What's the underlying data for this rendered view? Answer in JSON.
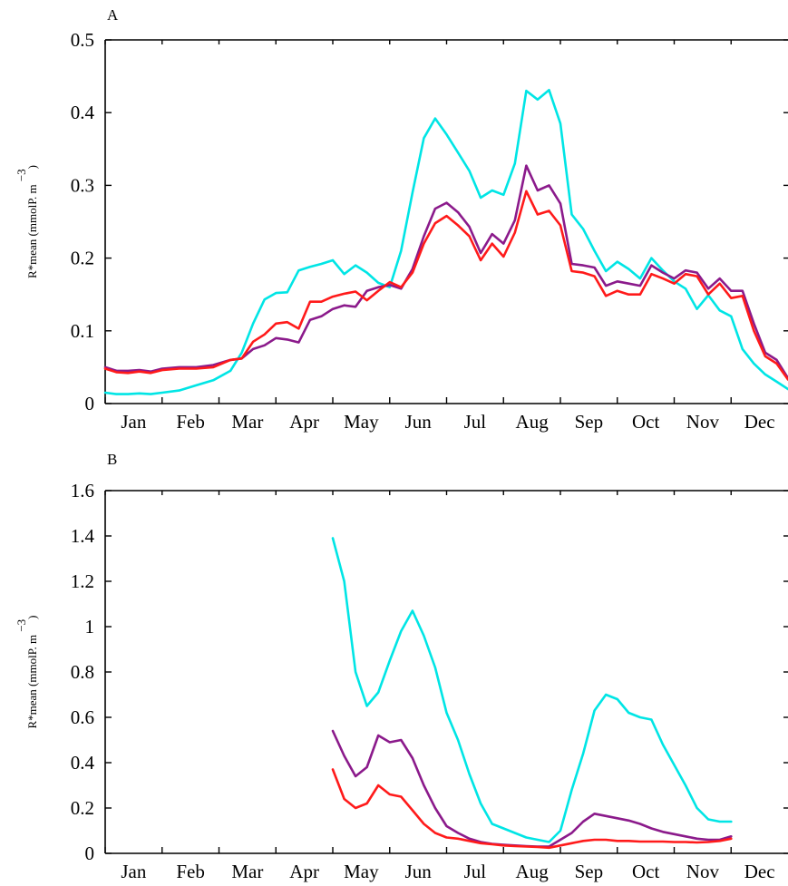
{
  "chart_data": [
    {
      "type": "line",
      "panel": "A",
      "title": "",
      "ylabel": "R*mean (mmolP. m −3)",
      "ylabel_main": "R*mean (mmolP. m",
      "ylabel_exp": "−3",
      "ylabel_close": ")",
      "ylim": [
        0,
        0.5
      ],
      "yticks": [
        "0",
        "0.1",
        "0.2",
        "0.3",
        "0.4",
        "0.5"
      ],
      "xlim": [
        0,
        12
      ],
      "months": [
        "Jan",
        "Feb",
        "Mar",
        "Apr",
        "May",
        "Jun",
        "Jul",
        "Aug",
        "Sep",
        "Oct",
        "Nov",
        "Dec"
      ],
      "series": [
        {
          "color": "#00e5e5",
          "x": [
            0,
            0.2,
            0.4,
            0.6,
            0.8,
            1.0,
            1.3,
            1.6,
            1.9,
            2.2,
            2.4,
            2.6,
            2.8,
            3.0,
            3.2,
            3.4,
            3.6,
            3.8,
            4.0,
            4.2,
            4.4,
            4.6,
            4.8,
            5.0,
            5.2,
            5.4,
            5.6,
            5.8,
            6.0,
            6.2,
            6.4,
            6.6,
            6.8,
            7.0,
            7.2,
            7.4,
            7.6,
            7.8,
            8.0,
            8.2,
            8.4,
            8.6,
            8.8,
            9.0,
            9.2,
            9.4,
            9.6,
            9.8,
            10.0,
            10.2,
            10.4,
            10.6,
            10.8,
            11.0,
            11.2,
            11.4,
            11.6,
            11.8,
            12.0
          ],
          "values": [
            0.015,
            0.013,
            0.013,
            0.014,
            0.013,
            0.015,
            0.018,
            0.025,
            0.032,
            0.045,
            0.07,
            0.11,
            0.143,
            0.152,
            0.153,
            0.183,
            0.188,
            0.192,
            0.197,
            0.178,
            0.19,
            0.18,
            0.166,
            0.16,
            0.21,
            0.29,
            0.365,
            0.392,
            0.37,
            0.345,
            0.32,
            0.283,
            0.293,
            0.287,
            0.33,
            0.43,
            0.418,
            0.431,
            0.385,
            0.26,
            0.24,
            0.21,
            0.182,
            0.195,
            0.185,
            0.172,
            0.2,
            0.183,
            0.168,
            0.158,
            0.13,
            0.149,
            0.128,
            0.12,
            0.075,
            0.055,
            0.04,
            0.03,
            0.02
          ]
        },
        {
          "color": "#8b1a8b",
          "x": [
            0,
            0.2,
            0.4,
            0.6,
            0.8,
            1.0,
            1.3,
            1.6,
            1.9,
            2.2,
            2.4,
            2.6,
            2.8,
            3.0,
            3.2,
            3.4,
            3.6,
            3.8,
            4.0,
            4.2,
            4.4,
            4.6,
            4.8,
            5.0,
            5.2,
            5.4,
            5.6,
            5.8,
            6.0,
            6.2,
            6.4,
            6.6,
            6.8,
            7.0,
            7.2,
            7.4,
            7.6,
            7.8,
            8.0,
            8.2,
            8.4,
            8.6,
            8.8,
            9.0,
            9.2,
            9.4,
            9.6,
            9.8,
            10.0,
            10.2,
            10.4,
            10.6,
            10.8,
            11.0,
            11.2,
            11.4,
            11.6,
            11.8,
            12.0
          ],
          "values": [
            0.05,
            0.045,
            0.045,
            0.046,
            0.044,
            0.048,
            0.05,
            0.05,
            0.053,
            0.06,
            0.062,
            0.075,
            0.08,
            0.09,
            0.088,
            0.084,
            0.115,
            0.12,
            0.13,
            0.135,
            0.133,
            0.155,
            0.16,
            0.163,
            0.158,
            0.185,
            0.23,
            0.268,
            0.276,
            0.263,
            0.243,
            0.207,
            0.233,
            0.22,
            0.252,
            0.327,
            0.293,
            0.3,
            0.275,
            0.192,
            0.19,
            0.187,
            0.162,
            0.168,
            0.165,
            0.162,
            0.19,
            0.18,
            0.172,
            0.183,
            0.18,
            0.158,
            0.172,
            0.155,
            0.155,
            0.11,
            0.07,
            0.06,
            0.035
          ]
        },
        {
          "color": "#ff1a1a",
          "x": [
            0,
            0.2,
            0.4,
            0.6,
            0.8,
            1.0,
            1.3,
            1.6,
            1.9,
            2.2,
            2.4,
            2.6,
            2.8,
            3.0,
            3.2,
            3.4,
            3.6,
            3.8,
            4.0,
            4.2,
            4.4,
            4.6,
            4.8,
            5.0,
            5.2,
            5.4,
            5.6,
            5.8,
            6.0,
            6.2,
            6.4,
            6.6,
            6.8,
            7.0,
            7.2,
            7.4,
            7.6,
            7.8,
            8.0,
            8.2,
            8.4,
            8.6,
            8.8,
            9.0,
            9.2,
            9.4,
            9.6,
            9.8,
            10.0,
            10.2,
            10.4,
            10.6,
            10.8,
            11.0,
            11.2,
            11.4,
            11.6,
            11.8,
            12.0
          ],
          "values": [
            0.048,
            0.043,
            0.042,
            0.044,
            0.042,
            0.046,
            0.048,
            0.048,
            0.05,
            0.06,
            0.062,
            0.085,
            0.095,
            0.11,
            0.112,
            0.103,
            0.14,
            0.14,
            0.147,
            0.151,
            0.154,
            0.142,
            0.155,
            0.167,
            0.16,
            0.18,
            0.22,
            0.248,
            0.258,
            0.245,
            0.23,
            0.197,
            0.22,
            0.202,
            0.235,
            0.292,
            0.26,
            0.265,
            0.245,
            0.182,
            0.18,
            0.175,
            0.148,
            0.155,
            0.15,
            0.15,
            0.178,
            0.172,
            0.165,
            0.178,
            0.175,
            0.15,
            0.165,
            0.145,
            0.148,
            0.1,
            0.065,
            0.055,
            0.033
          ]
        }
      ]
    },
    {
      "type": "line",
      "panel": "B",
      "title": "",
      "ylabel": "R*mean (mmolP. m −3)",
      "ylabel_main": "R*mean (mmolP. m",
      "ylabel_exp": "−3",
      "ylabel_close": ")",
      "ylim": [
        0,
        1.6
      ],
      "yticks": [
        "0",
        "0.2",
        "0.4",
        "0.6",
        "0.8",
        "1",
        "1.2",
        "1.4",
        "1.6"
      ],
      "xlim": [
        0,
        12
      ],
      "months": [
        "Jan",
        "Feb",
        "Mar",
        "Apr",
        "May",
        "Jun",
        "Jul",
        "Aug",
        "Sep",
        "Oct",
        "Nov",
        "Dec"
      ],
      "series": [
        {
          "color": "#00e5e5",
          "x": [
            4.0,
            4.2,
            4.4,
            4.6,
            4.8,
            5.0,
            5.2,
            5.4,
            5.6,
            5.8,
            6.0,
            6.2,
            6.4,
            6.6,
            6.8,
            7.0,
            7.2,
            7.4,
            7.6,
            7.8,
            8.0,
            8.2,
            8.4,
            8.6,
            8.8,
            9.0,
            9.2,
            9.4,
            9.6,
            9.8,
            10.0,
            10.2,
            10.4,
            10.6,
            10.8,
            11.0
          ],
          "values": [
            1.39,
            1.2,
            0.8,
            0.65,
            0.71,
            0.85,
            0.98,
            1.07,
            0.96,
            0.82,
            0.62,
            0.5,
            0.35,
            0.22,
            0.13,
            0.11,
            0.09,
            0.07,
            0.06,
            0.05,
            0.1,
            0.28,
            0.44,
            0.63,
            0.7,
            0.68,
            0.62,
            0.6,
            0.59,
            0.48,
            0.39,
            0.3,
            0.2,
            0.15,
            0.14,
            0.14
          ]
        },
        {
          "color": "#8b1a8b",
          "x": [
            4.0,
            4.2,
            4.4,
            4.6,
            4.8,
            5.0,
            5.2,
            5.4,
            5.6,
            5.8,
            6.0,
            6.2,
            6.4,
            6.6,
            6.8,
            7.0,
            7.2,
            7.4,
            7.6,
            7.8,
            8.0,
            8.2,
            8.4,
            8.6,
            8.8,
            9.0,
            9.2,
            9.4,
            9.6,
            9.8,
            10.0,
            10.2,
            10.4,
            10.6,
            10.8,
            11.0
          ],
          "values": [
            0.54,
            0.43,
            0.34,
            0.38,
            0.52,
            0.49,
            0.5,
            0.42,
            0.3,
            0.2,
            0.12,
            0.09,
            0.065,
            0.05,
            0.042,
            0.038,
            0.035,
            0.032,
            0.03,
            0.03,
            0.06,
            0.09,
            0.14,
            0.175,
            0.165,
            0.155,
            0.145,
            0.13,
            0.11,
            0.095,
            0.085,
            0.075,
            0.065,
            0.06,
            0.06,
            0.075
          ]
        },
        {
          "color": "#ff1a1a",
          "x": [
            4.0,
            4.2,
            4.4,
            4.6,
            4.8,
            5.0,
            5.2,
            5.4,
            5.6,
            5.8,
            6.0,
            6.2,
            6.4,
            6.6,
            6.8,
            7.0,
            7.2,
            7.4,
            7.6,
            7.8,
            8.0,
            8.2,
            8.4,
            8.6,
            8.8,
            9.0,
            9.2,
            9.4,
            9.6,
            9.8,
            10.0,
            10.2,
            10.4,
            10.6,
            10.8,
            11.0
          ],
          "values": [
            0.37,
            0.24,
            0.2,
            0.22,
            0.3,
            0.26,
            0.25,
            0.19,
            0.13,
            0.09,
            0.07,
            0.065,
            0.055,
            0.045,
            0.04,
            0.035,
            0.032,
            0.03,
            0.028,
            0.025,
            0.035,
            0.045,
            0.055,
            0.06,
            0.06,
            0.055,
            0.055,
            0.052,
            0.052,
            0.052,
            0.05,
            0.05,
            0.048,
            0.05,
            0.055,
            0.065
          ]
        }
      ]
    }
  ]
}
